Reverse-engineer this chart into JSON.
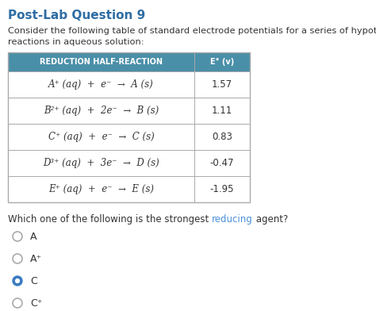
{
  "title": "Post-Lab Question 9",
  "intro_line1": "Consider the following table of standard electrode potentials for a series of hypothetical",
  "intro_line2": "reactions in aqueous solution:",
  "table_header": [
    "REDUCTION HALF-REACTION",
    "E° (v)"
  ],
  "table_col1": [
    "A⁺ (aq)  +  e⁻  →  A (s)",
    "B²⁺ (aq)  +  2e⁻  →  B (s)",
    "C⁺ (aq)  +  e⁻  →  C (s)",
    "D³⁺ (aq)  +  3e⁻  →  D (s)",
    "E⁺ (aq)  +  e⁻  →  E (s)"
  ],
  "table_col2": [
    "1.57",
    "1.11",
    "0.83",
    "-0.47",
    "-1.95"
  ],
  "question_part1": "Which one of the following is the strongest ",
  "question_part2": "reducing",
  "question_part3": " agent?",
  "options": [
    "A",
    "A⁺",
    "C",
    "C⁺"
  ],
  "selected_option": 2,
  "header_bg": "#4a8fa8",
  "header_text_color": "#ffffff",
  "table_border_color": "#aaaaaa",
  "bg_color": "#ffffff",
  "title_color": "#2e6da4",
  "body_text_color": "#333333",
  "question_highlight_color": "#4a90d9",
  "selected_radio_color": "#3a7bbf",
  "unselected_radio_color": "#aaaaaa"
}
